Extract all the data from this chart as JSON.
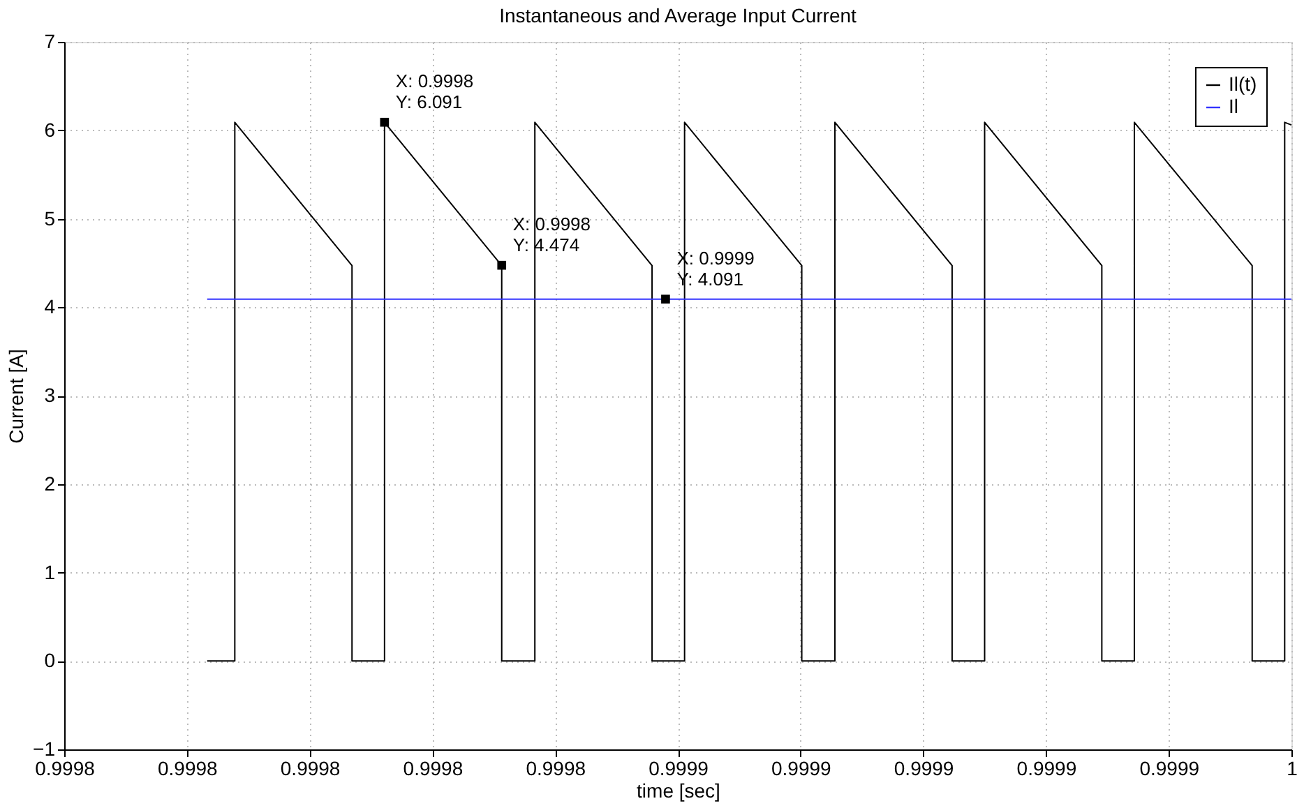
{
  "chart_data": {
    "type": "line",
    "title": "Instantaneous and Average Input Current",
    "xlabel": "time [sec]",
    "ylabel": "Current [A]",
    "series": [
      {
        "name": "Il(t)",
        "color": "#000000",
        "x": [
          0.9997833,
          0.9997878,
          0.9997878,
          0.9998069,
          0.9998069,
          0.9998122,
          0.9998122,
          0.9998313,
          0.9998313,
          0.9998367,
          0.9998367,
          0.9998558,
          0.9998558,
          0.9998611,
          0.9998611,
          0.9998802,
          0.9998802,
          0.9998856,
          0.9998856,
          0.9999047,
          0.9999047,
          0.99991,
          0.99991,
          0.9999291,
          0.9999291,
          0.9999344,
          0.9999344,
          0.9999536,
          0.9999536,
          0.9999589,
          0.9999589,
          0.99996
        ],
        "values": [
          0,
          0,
          6.09,
          4.47,
          0,
          0,
          6.09,
          4.47,
          0,
          0,
          6.09,
          4.47,
          0,
          0,
          6.09,
          4.47,
          0,
          0,
          6.09,
          4.47,
          0,
          0,
          6.09,
          4.47,
          0,
          0,
          6.09,
          4.47,
          0,
          0,
          6.09,
          6.06
        ]
      },
      {
        "name": "Il",
        "color": "#3333ff",
        "x": [
          0.9997833,
          0.99996
        ],
        "values": [
          4.09,
          4.09
        ]
      }
    ],
    "annotations": [
      {
        "text": "X: 0.9998\nY: 6.091",
        "x": 0.9998122,
        "y": 6.091
      },
      {
        "text": "X: 0.9998\nY: 4.474",
        "x": 0.9998313,
        "y": 4.474
      },
      {
        "text": "X: 0.9999\nY: 4.091",
        "x": 0.999858,
        "y": 4.091
      }
    ],
    "xlim": [
      0.99976,
      0.99996
    ],
    "xticks": [
      {
        "value": 0.99976,
        "label": "0.9998"
      },
      {
        "value": 0.99978,
        "label": "0.9998"
      },
      {
        "value": 0.9998,
        "label": "0.9998"
      },
      {
        "value": 0.99982,
        "label": "0.9998"
      },
      {
        "value": 0.99984,
        "label": "0.9998"
      },
      {
        "value": 0.99986,
        "label": "0.9999"
      },
      {
        "value": 0.99988,
        "label": "0.9999"
      },
      {
        "value": 0.9999,
        "label": "0.9999"
      },
      {
        "value": 0.99992,
        "label": "0.9999"
      },
      {
        "value": 0.99994,
        "label": "0.9999"
      },
      {
        "value": 0.99996,
        "label": "1"
      }
    ],
    "ylim": [
      -1,
      7
    ],
    "yticks": [
      -1,
      0,
      1,
      2,
      3,
      4,
      5,
      6,
      7
    ],
    "grid": true,
    "legend": "top right",
    "marker": "none",
    "line_style": "solid"
  }
}
